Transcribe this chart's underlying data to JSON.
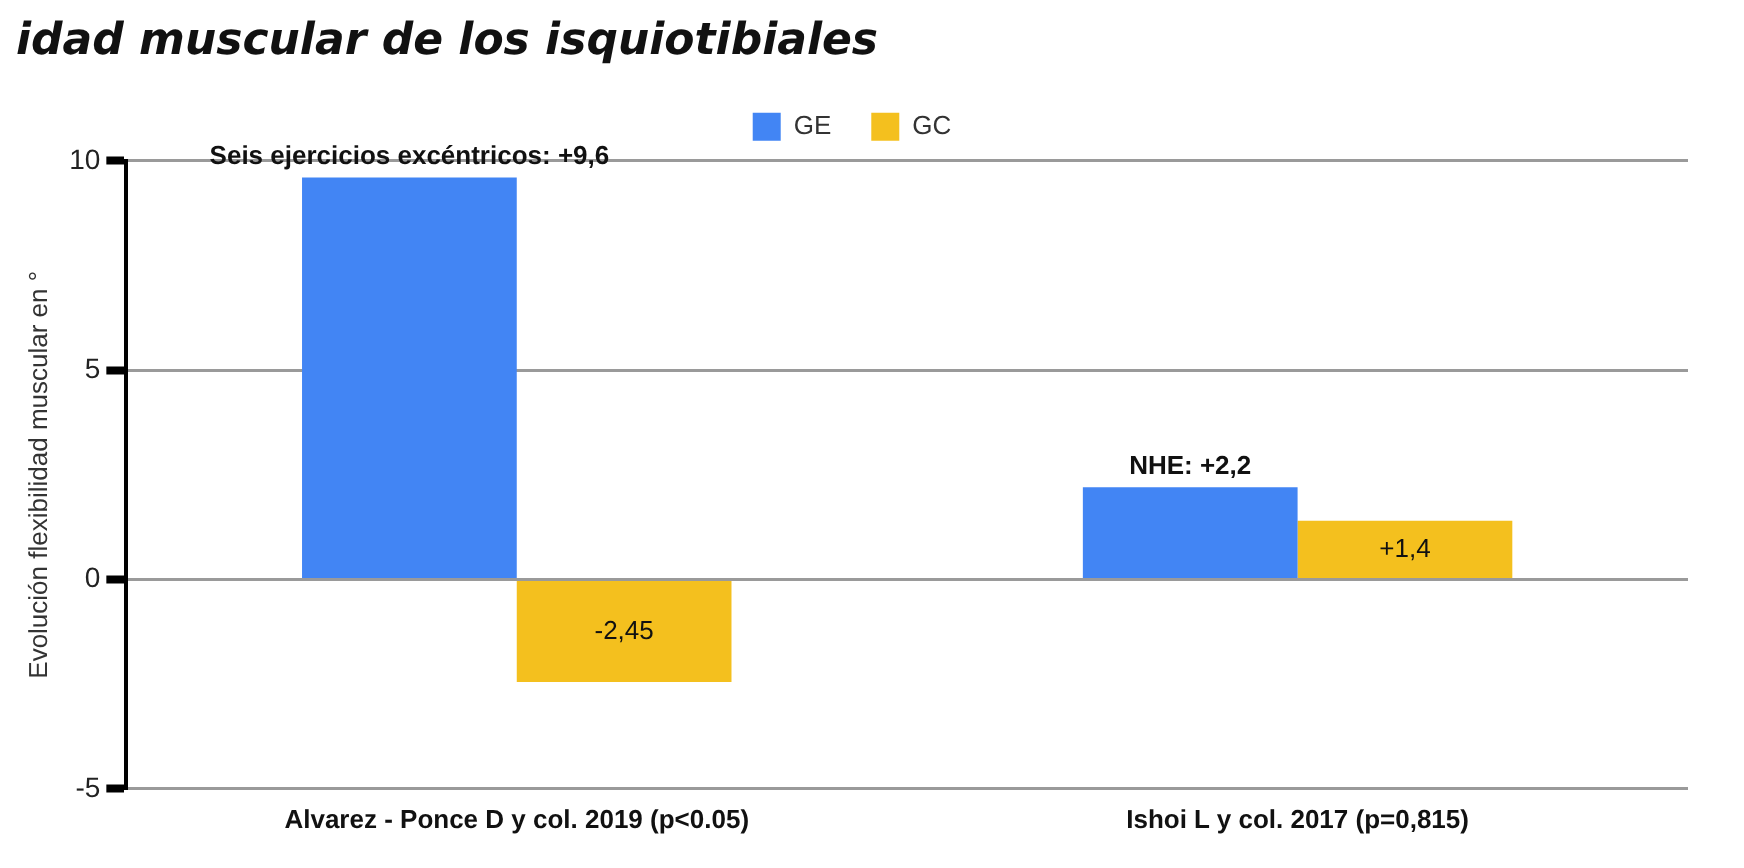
{
  "chart_data": {
    "type": "bar",
    "title": "idad muscular de los isquiotibiales",
    "ylabel": "Evolución flexibilidad muscular en °",
    "categories": [
      "Alvarez - Ponce D y col. 2019 (p<0.05)",
      "Ishoi L y col. 2017 (p=0,815)"
    ],
    "series": [
      {
        "name": "GE",
        "color": "#4285f4",
        "values": [
          9.6,
          2.2
        ],
        "value_labels": [
          "Seis ejercicios excéntricos: +9,6",
          "NHE: +2,2"
        ]
      },
      {
        "name": "GC",
        "color": "#f4c01e",
        "values": [
          -2.45,
          1.4
        ],
        "value_labels": [
          "-2,45",
          "+1,4"
        ]
      }
    ],
    "ylim": [
      -5,
      10
    ],
    "yticks": [
      -5,
      0,
      5,
      10
    ],
    "grid": "y",
    "legend": "top right"
  }
}
